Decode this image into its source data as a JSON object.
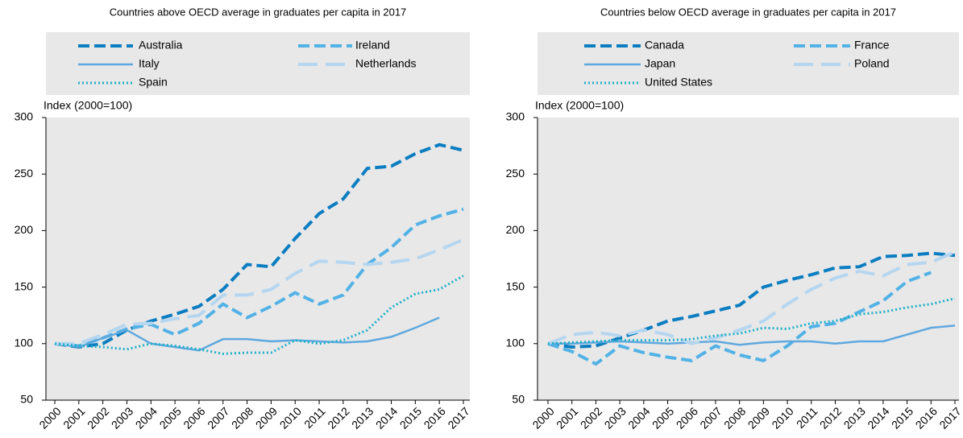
{
  "chart_data": [
    {
      "type": "line",
      "title": "Countries above OECD average in graduates per capita in 2017",
      "ylabel": "Index (2000=100)",
      "categories": [
        "2000",
        "2001",
        "2002",
        "2003",
        "2004",
        "2005",
        "2006",
        "2007",
        "2008",
        "2009",
        "2010",
        "2011",
        "2012",
        "2013",
        "2014",
        "2015",
        "2016",
        "2017"
      ],
      "ylim": [
        50,
        300
      ],
      "yticks": [
        50,
        100,
        150,
        200,
        250,
        300
      ],
      "series": [
        {
          "name": "Australia",
          "color": "#0b7dc1",
          "style": "dashed",
          "values": [
            100,
            97,
            100,
            112,
            120,
            126,
            133,
            148,
            170,
            168,
            193,
            215,
            228,
            255,
            257,
            268,
            276,
            271
          ]
        },
        {
          "name": "Ireland",
          "color": "#52b2e6",
          "style": "dashed",
          "values": [
            100,
            98,
            105,
            113,
            117,
            108,
            118,
            135,
            123,
            133,
            145,
            135,
            143,
            170,
            185,
            205,
            213,
            219
          ]
        },
        {
          "name": "Italy",
          "color": "#5ea8df",
          "style": "solid",
          "values": [
            100,
            97,
            105,
            112,
            100,
            97,
            94,
            104,
            104,
            102,
            103,
            102,
            101,
            102,
            106,
            114,
            123,
            null
          ]
        },
        {
          "name": "Netherlands",
          "color": "#b5d6f0",
          "style": "longdash",
          "values": [
            100,
            100,
            108,
            117,
            118,
            122,
            125,
            143,
            143,
            148,
            162,
            173,
            172,
            170,
            172,
            175,
            183,
            192
          ]
        },
        {
          "name": "Spain",
          "color": "#1fb0c8",
          "style": "dotted",
          "values": [
            100,
            98,
            97,
            95,
            100,
            98,
            95,
            91,
            92,
            92,
            103,
            100,
            103,
            112,
            132,
            144,
            148,
            160
          ]
        }
      ]
    },
    {
      "type": "line",
      "title": "Countries below OECD average in graduates per capita in 2017",
      "ylabel": "Index (2000=100)",
      "categories": [
        "2000",
        "2001",
        "2002",
        "2003",
        "2004",
        "2005",
        "2006",
        "2007",
        "2008",
        "2009",
        "2010",
        "2011",
        "2012",
        "2013",
        "2014",
        "2015",
        "2016",
        "2017"
      ],
      "ylim": [
        50,
        300
      ],
      "yticks": [
        50,
        100,
        150,
        200,
        250,
        300
      ],
      "series": [
        {
          "name": "Canada",
          "color": "#0b7dc1",
          "style": "dashed",
          "values": [
            100,
            97,
            98,
            105,
            112,
            120,
            124,
            129,
            134,
            150,
            156,
            161,
            167,
            168,
            177,
            178,
            180,
            178
          ]
        },
        {
          "name": "France",
          "color": "#52b2e6",
          "style": "dashed",
          "values": [
            100,
            93,
            82,
            98,
            92,
            88,
            85,
            98,
            90,
            85,
            98,
            115,
            118,
            128,
            138,
            155,
            163,
            null
          ]
        },
        {
          "name": "Japan",
          "color": "#5ea8df",
          "style": "solid",
          "values": [
            100,
            100,
            101,
            102,
            101,
            100,
            101,
            102,
            99,
            101,
            102,
            102,
            100,
            102,
            102,
            108,
            114,
            116
          ]
        },
        {
          "name": "Poland",
          "color": "#b5d6f0",
          "style": "longdash",
          "values": [
            100,
            108,
            110,
            107,
            112,
            108,
            100,
            105,
            112,
            120,
            135,
            148,
            158,
            164,
            160,
            170,
            172,
            181
          ]
        },
        {
          "name": "United States",
          "color": "#1fb0c8",
          "style": "dotted",
          "values": [
            100,
            101,
            102,
            103,
            103,
            103,
            104,
            107,
            109,
            114,
            113,
            118,
            120,
            126,
            128,
            132,
            135,
            140
          ]
        }
      ]
    }
  ]
}
